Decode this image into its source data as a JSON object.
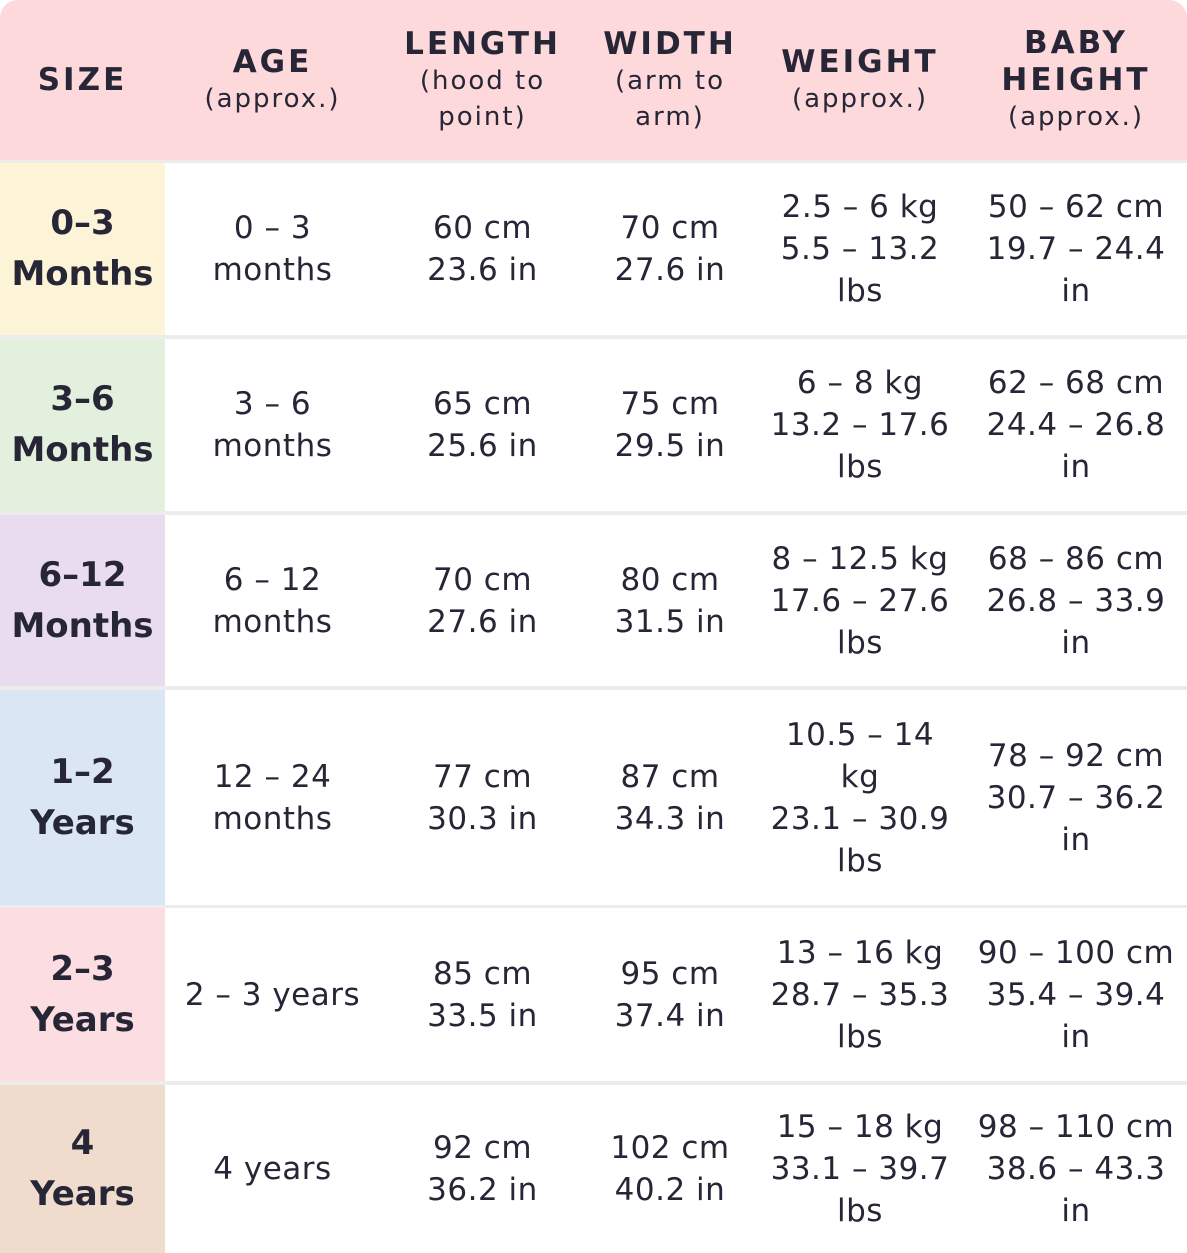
{
  "table": {
    "header": [
      {
        "title": [
          "SIZE"
        ],
        "subtitle": []
      },
      {
        "title": [
          "AGE"
        ],
        "subtitle": [
          "(approx.)"
        ]
      },
      {
        "title": [
          "LENGTH"
        ],
        "subtitle": [
          "(hood to",
          "point)"
        ]
      },
      {
        "title": [
          "WIDTH"
        ],
        "subtitle": [
          "(arm to",
          "arm)"
        ]
      },
      {
        "title": [
          "WEIGHT"
        ],
        "subtitle": [
          "(approx.)"
        ]
      },
      {
        "title": [
          "BABY",
          "HEIGHT"
        ],
        "subtitle": [
          "(approx.)"
        ]
      }
    ],
    "rows": [
      [
        [
          "0–3",
          "Months"
        ],
        [
          "0 – 3",
          "months"
        ],
        [
          "60 cm",
          "23.6 in"
        ],
        [
          "70 cm",
          "27.6 in"
        ],
        [
          "2.5 – 6 kg",
          "5.5 – 13.2",
          "lbs"
        ],
        [
          "50 – 62 cm",
          "19.7 – 24.4",
          "in"
        ]
      ],
      [
        [
          "3–6",
          "Months"
        ],
        [
          "3 – 6",
          "months"
        ],
        [
          "65 cm",
          "25.6 in"
        ],
        [
          "75 cm",
          "29.5 in"
        ],
        [
          "6 – 8 kg",
          "13.2 – 17.6",
          "lbs"
        ],
        [
          "62 – 68 cm",
          "24.4 – 26.8",
          "in"
        ]
      ],
      [
        [
          "6–12",
          "Months"
        ],
        [
          "6 – 12",
          "months"
        ],
        [
          "70 cm",
          "27.6 in"
        ],
        [
          "80 cm",
          "31.5 in"
        ],
        [
          "8 – 12.5 kg",
          "17.6 – 27.6",
          "lbs"
        ],
        [
          "68 – 86 cm",
          "26.8 – 33.9",
          "in"
        ]
      ],
      [
        [
          "1–2",
          "Years"
        ],
        [
          "12 – 24",
          "months"
        ],
        [
          "77 cm",
          "30.3 in"
        ],
        [
          "87 cm",
          "34.3 in"
        ],
        [
          "10.5 – 14",
          "kg",
          "23.1 – 30.9",
          "lbs"
        ],
        [
          "78 – 92 cm",
          "30.7 – 36.2",
          "in"
        ]
      ],
      [
        [
          "2–3",
          "Years"
        ],
        [
          "2 – 3 years"
        ],
        [
          "85 cm",
          "33.5 in"
        ],
        [
          "95 cm",
          "37.4 in"
        ],
        [
          "13 – 16 kg",
          "28.7 – 35.3",
          "lbs"
        ],
        [
          "90 – 100 cm",
          "35.4 – 39.4",
          "in"
        ]
      ],
      [
        [
          "4",
          "Years"
        ],
        [
          "4 years"
        ],
        [
          "92 cm",
          "36.2 in"
        ],
        [
          "102 cm",
          "40.2 in"
        ],
        [
          "15 – 18 kg",
          "33.1 – 39.7",
          "lbs"
        ],
        [
          "98 – 110 cm",
          "38.6 – 43.3",
          "in"
        ]
      ]
    ]
  }
}
